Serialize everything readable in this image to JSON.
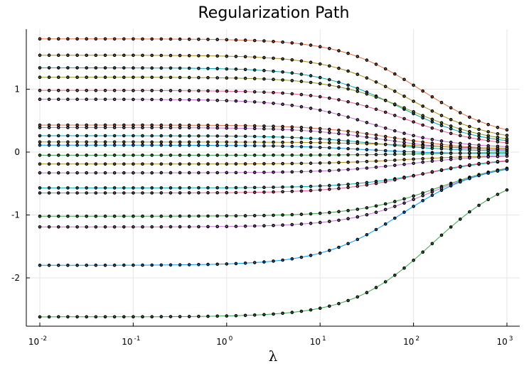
{
  "chart_data": {
    "type": "line",
    "title": "Regularization Path",
    "xlabel": "λ",
    "ylabel": "",
    "x_scale": "log10",
    "xlim": [
      0.01,
      1000
    ],
    "ylim": [
      -2.7,
      1.95
    ],
    "x_ticks": [
      {
        "base": "10",
        "exp": "-2"
      },
      {
        "base": "10",
        "exp": "-1"
      },
      {
        "base": "10",
        "exp": "0"
      },
      {
        "base": "10",
        "exp": "1"
      },
      {
        "base": "10",
        "exp": "2"
      },
      {
        "base": "10",
        "exp": "3"
      }
    ],
    "y_ticks": [
      "1",
      "0",
      "-1",
      "-2"
    ],
    "grid": true,
    "legend": "none",
    "marker": "dot",
    "marker_color": "#1a1a1a",
    "n_points": 51,
    "lambda_range": [
      0.01,
      1000
    ],
    "series_colors": [
      "#e26f46",
      "#3da44d",
      "#c271d2",
      "#ac8d18",
      "#00a9ad",
      "#ed5e93",
      "#009af9",
      "#8e971e"
    ],
    "series": [
      {
        "color": "#e26f46",
        "start": 1.8,
        "end": 0.18,
        "mid": 120
      },
      {
        "color": "#ac8d18",
        "start": 1.54,
        "end": 0.15,
        "mid": 90
      },
      {
        "color": "#00a9ad",
        "start": 1.34,
        "end": 0.1,
        "mid": 70
      },
      {
        "color": "#8e971e",
        "start": 1.19,
        "end": 0.12,
        "mid": 95
      },
      {
        "color": "#ed5e93",
        "start": 0.98,
        "end": 0.08,
        "mid": 80
      },
      {
        "color": "#c271d2",
        "start": 0.84,
        "end": 0.06,
        "mid": 35
      },
      {
        "color": "#e26f46",
        "start": 0.43,
        "end": 0.03,
        "mid": 60
      },
      {
        "color": "#c271d2",
        "start": 0.39,
        "end": 0.02,
        "mid": 45
      },
      {
        "color": "#00a9ad",
        "start": 0.26,
        "end": 0.01,
        "mid": 40
      },
      {
        "color": "#ac8d18",
        "start": 0.16,
        "end": 0.05,
        "mid": 100
      },
      {
        "color": "#009af9",
        "start": 0.11,
        "end": -0.03,
        "mid": 30
      },
      {
        "color": "#3da44d",
        "start": -0.05,
        "end": 0.0,
        "mid": 150
      },
      {
        "color": "#ac8d18",
        "start": -0.19,
        "end": -0.05,
        "mid": 80
      },
      {
        "color": "#c271d2",
        "start": -0.33,
        "end": -0.04,
        "mid": 90
      },
      {
        "color": "#00a9ad",
        "start": -0.57,
        "end": -0.08,
        "mid": 150
      },
      {
        "color": "#ed5e93",
        "start": -0.65,
        "end": -0.08,
        "mid": 110
      },
      {
        "color": "#3da44d",
        "start": -1.02,
        "end": -0.12,
        "mid": 180
      },
      {
        "color": "#c271d2",
        "start": -1.19,
        "end": -0.14,
        "mid": 140
      },
      {
        "color": "#009af9",
        "start": -1.8,
        "end": -0.16,
        "mid": 75
      },
      {
        "color": "#3da44d",
        "start": -2.62,
        "end": -0.28,
        "mid": 160
      }
    ]
  }
}
